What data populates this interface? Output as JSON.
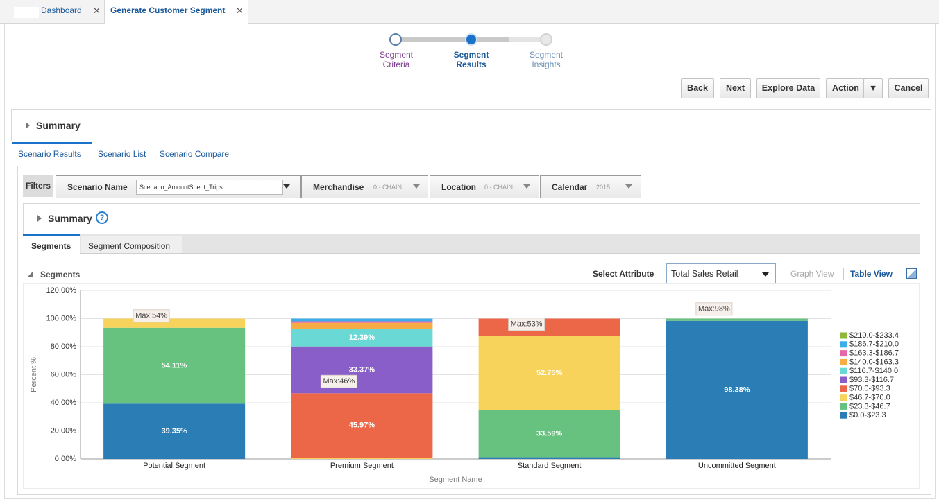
{
  "tabs": [
    "Dashboard",
    "Generate Customer Segment"
  ],
  "train": [
    "Segment Criteria",
    "Segment Results",
    "Segment Insights"
  ],
  "buttons": [
    "Back",
    "Next",
    "Explore Data",
    "Action",
    "Cancel"
  ],
  "summary": "Summary",
  "scenario_tabs": [
    "Scenario Results",
    "Scenario List",
    "Scenario Compare"
  ],
  "filters": {
    "label": "Filters",
    "items": [
      {
        "name": "Scenario Name",
        "value": "Scenario_AmountSpent_Trips"
      },
      {
        "name": "Merchandise",
        "value": "0 - CHAIN"
      },
      {
        "name": "Location",
        "value": "0 - CHAIN"
      },
      {
        "name": "Calendar",
        "value": "2015"
      }
    ]
  },
  "inner_summary": "Summary",
  "segment_tabs": [
    "Segments",
    "Segment Composition"
  ],
  "select_attribute": {
    "label": "Select Attribute",
    "value": "Total Sales Retail"
  },
  "views": [
    "Graph View",
    "Table View"
  ],
  "chart_data": {
    "type": "stacked_bar",
    "title": "Segments",
    "x_label": "Segment Name",
    "y_label": "Percent %",
    "categories": [
      "Potential Segment",
      "Premium Segment",
      "Standard Segment",
      "Uncommitted Segment"
    ],
    "series": [
      {
        "name": "$0.0-$23.3",
        "color": "#2a7db5",
        "values": [
          39.35,
          0,
          1.2,
          98.38
        ],
        "value_labels": [
          "39.35%",
          null,
          null,
          "98.38%"
        ]
      },
      {
        "name": "$23.3-$46.7",
        "color": "#66c27e",
        "values": [
          54.11,
          0,
          33.59,
          1.62
        ],
        "value_labels": [
          "54.11%",
          null,
          "33.59%",
          null
        ]
      },
      {
        "name": "$46.7-$70.0",
        "color": "#f7d35c",
        "values": [
          6.54,
          0.8,
          52.75,
          0
        ],
        "value_labels": [
          null,
          null,
          "52.75%",
          null
        ]
      },
      {
        "name": "$70.0-$93.3",
        "color": "#ec6648",
        "values": [
          0,
          45.97,
          12.46,
          0
        ],
        "value_labels": [
          null,
          "45.97%",
          null,
          null
        ]
      },
      {
        "name": "$93.3-$116.7",
        "color": "#8a5ec8",
        "values": [
          0,
          33.37,
          0,
          0
        ],
        "value_labels": [
          null,
          "33.37%",
          null,
          null
        ]
      },
      {
        "name": "$116.7-$140.0",
        "color": "#6ad8d4",
        "values": [
          0,
          12.39,
          0,
          0
        ],
        "value_labels": [
          null,
          "12.39%",
          null,
          null
        ]
      },
      {
        "name": "$140.0-$163.3",
        "color": "#f6ab44",
        "values": [
          0,
          4.4,
          0,
          0
        ]
      },
      {
        "name": "$163.3-$186.7",
        "color": "#e667a8",
        "values": [
          0,
          1.1,
          0,
          0
        ]
      },
      {
        "name": "$186.7-$210.0",
        "color": "#3aaee8",
        "values": [
          0,
          1.97,
          0,
          0
        ]
      },
      {
        "name": "$210.0-$233.4",
        "color": "#8fb83a",
        "values": [
          0,
          0,
          0,
          0
        ]
      }
    ],
    "annotations": [
      "Max:54%",
      "Max:46%",
      "Max:53%",
      "Max:98%"
    ],
    "ylim": [
      0,
      120
    ],
    "yticks": [
      {
        "value": 0,
        "label": "0.00%"
      },
      {
        "value": 20,
        "label": "20.00%"
      },
      {
        "value": 40,
        "label": "40.00%"
      },
      {
        "value": 60,
        "label": "60.00%"
      },
      {
        "value": 80,
        "label": "80.00%"
      },
      {
        "value": 100,
        "label": "100.00%"
      },
      {
        "value": 120,
        "label": "120.00%"
      }
    ],
    "grid": true
  }
}
